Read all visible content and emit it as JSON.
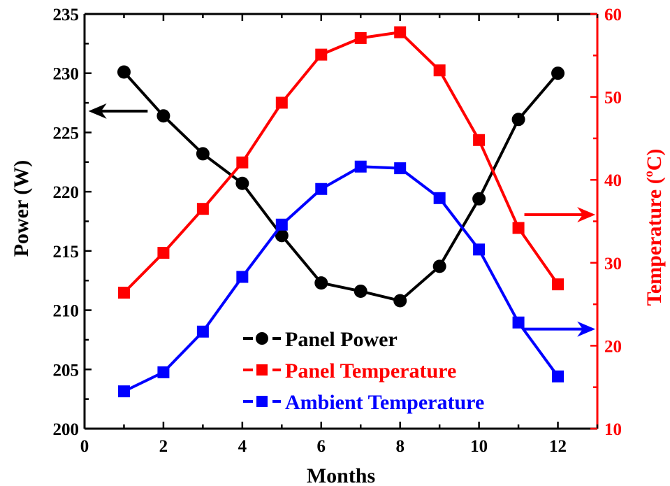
{
  "chart_data": {
    "type": "line",
    "xlabel": "Months",
    "ylabel_left": "Power (W)",
    "ylabel_right_parts": [
      "Temperature (",
      "o",
      "C)"
    ],
    "x": [
      1,
      2,
      3,
      4,
      5,
      6,
      7,
      8,
      9,
      10,
      11,
      12
    ],
    "xlim": [
      0,
      13
    ],
    "ylim_left": [
      200,
      235
    ],
    "ylim_right": [
      10,
      60
    ],
    "x_ticks": [
      "0",
      "2",
      "4",
      "6",
      "8",
      "10",
      "12"
    ],
    "y_left_ticks": [
      "200",
      "205",
      "210",
      "215",
      "220",
      "225",
      "230",
      "235"
    ],
    "y_right_ticks": [
      "10",
      "20",
      "30",
      "40",
      "50",
      "60"
    ],
    "grid": false,
    "legend_position": "bottom-center",
    "series": [
      {
        "name": "Panel Power",
        "axis": "left",
        "color": "#000000",
        "marker": "circle",
        "values": [
          230.1,
          226.4,
          223.2,
          220.7,
          216.3,
          212.3,
          211.6,
          210.8,
          213.7,
          219.4,
          226.1,
          230.0
        ]
      },
      {
        "name": "Panel Temperature",
        "axis": "right",
        "color": "#ff0000",
        "marker": "square",
        "values": [
          26.4,
          31.2,
          36.5,
          42.1,
          49.3,
          55.1,
          57.1,
          57.8,
          53.2,
          44.8,
          34.2,
          27.4
        ]
      },
      {
        "name": "Ambient Temperature",
        "axis": "right",
        "color": "#0000ff",
        "marker": "square",
        "values": [
          14.5,
          16.8,
          21.7,
          28.3,
          34.6,
          38.9,
          41.6,
          41.4,
          37.8,
          31.6,
          22.8,
          16.3
        ]
      }
    ],
    "annotations": [
      {
        "type": "arrow",
        "direction": "left",
        "color": "#000000",
        "x_from": 1.6,
        "x_to": 0.1,
        "axis": "left",
        "y": 226.8
      },
      {
        "type": "arrow",
        "direction": "right",
        "color": "#ff0000",
        "x_from": 11.15,
        "x_to": 12.95,
        "axis": "right",
        "y": 35.8
      },
      {
        "type": "arrow",
        "direction": "right",
        "color": "#0000ff",
        "x_from": 11.15,
        "x_to": 12.95,
        "axis": "right",
        "y": 22.0
      }
    ]
  }
}
